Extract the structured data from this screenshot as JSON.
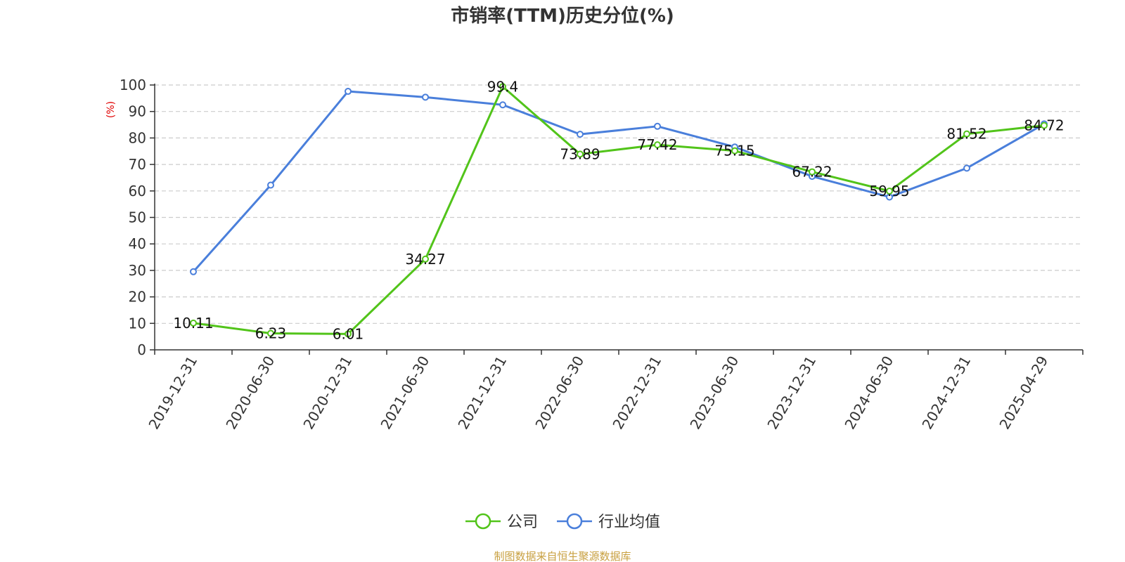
{
  "chart_data": {
    "type": "line",
    "title": "市销率(TTM)历史分位(%)",
    "ylabel": "(%)",
    "ylim": [
      0,
      100
    ],
    "yticks": [
      0,
      10,
      20,
      30,
      40,
      50,
      60,
      70,
      80,
      90,
      100
    ],
    "categories": [
      "2019-12-31",
      "2020-06-30",
      "2020-12-31",
      "2021-06-30",
      "2021-12-31",
      "2022-06-30",
      "2022-12-31",
      "2023-06-30",
      "2023-12-31",
      "2024-06-30",
      "2024-12-31",
      "2025-04-29"
    ],
    "series": [
      {
        "name": "公司",
        "color": "#52c41a",
        "values": [
          10.11,
          6.23,
          6.01,
          34.27,
          99.4,
          73.89,
          77.42,
          75.15,
          67.22,
          59.95,
          81.52,
          84.72
        ],
        "labels": [
          "10.11",
          "6.23",
          "6.01",
          "34.27",
          "99.4",
          "73.89",
          "77.42",
          "75.15",
          "67.22",
          "59.95",
          "81.52",
          "84.72"
        ]
      },
      {
        "name": "行业均值",
        "color": "#4a7fdb",
        "values": [
          29.5,
          62.2,
          97.6,
          95.4,
          92.5,
          81.4,
          84.4,
          76.6,
          65.5,
          57.7,
          68.6,
          85.3
        ]
      }
    ],
    "grid": true,
    "legend_position": "bottom-center"
  },
  "footer": {
    "source": "制图数据来自恒生聚源数据库"
  },
  "colors": {
    "axis_label_accent": "#e00000",
    "source_text": "#c8a040",
    "grid": "#cccccc"
  }
}
